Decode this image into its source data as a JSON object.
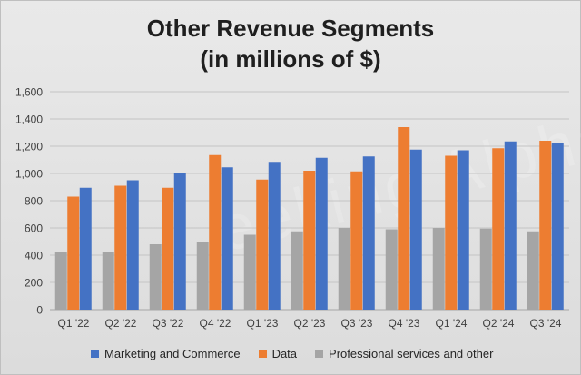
{
  "chart_data": {
    "type": "bar",
    "title_line1": "Other Revenue Segments",
    "title_line2": "(in millions of $)",
    "xlabel": "",
    "ylabel": "",
    "ylim": [
      0,
      1600
    ],
    "yticks": [
      0,
      200,
      400,
      600,
      800,
      1000,
      1200,
      1400,
      1600
    ],
    "ytick_labels": [
      "0",
      "200",
      "400",
      "600",
      "800",
      "1,000",
      "1,200",
      "1,400",
      "1,600"
    ],
    "grid": true,
    "legend_position": "bottom",
    "categories": [
      "Q1 '22",
      "Q2 '22",
      "Q3 '22",
      "Q4 '22",
      "Q1 '23",
      "Q2 '23",
      "Q3 '23",
      "Q4 '23",
      "Q1 '24",
      "Q2 '24",
      "Q3 '24"
    ],
    "series": [
      {
        "name": "Professional services and other",
        "color": "#a5a5a5",
        "values": [
          420,
          420,
          480,
          495,
          550,
          575,
          600,
          590,
          600,
          595,
          575
        ]
      },
      {
        "name": "Data",
        "color": "#ed7d31",
        "values": [
          830,
          910,
          895,
          1135,
          955,
          1020,
          1015,
          1340,
          1130,
          1185,
          1240
        ]
      },
      {
        "name": "Marketing and Commerce",
        "color": "#4472c4",
        "values": [
          895,
          950,
          1000,
          1045,
          1085,
          1115,
          1125,
          1175,
          1170,
          1235,
          1225
        ]
      }
    ],
    "legend_order": [
      "Marketing and Commerce",
      "Data",
      "Professional services and other"
    ]
  },
  "watermark": "eeking Alpha"
}
